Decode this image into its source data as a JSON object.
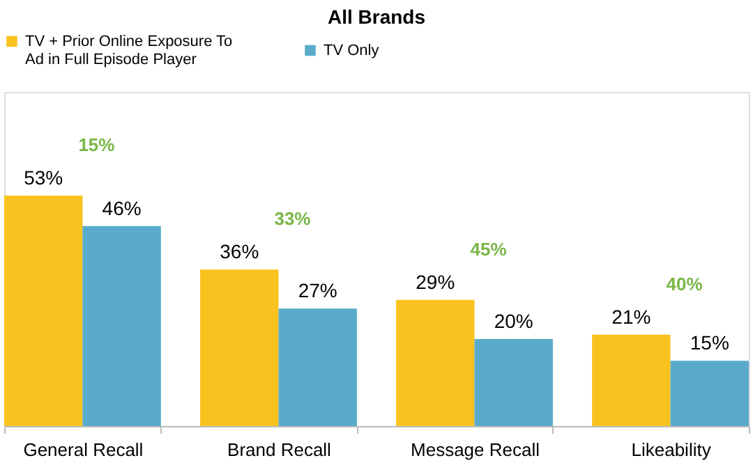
{
  "chart_data": {
    "type": "bar",
    "title": "All Brands",
    "categories": [
      "General Recall",
      "Brand Recall",
      "Message Recall",
      "Likeability"
    ],
    "series": [
      {
        "name": "TV + Prior Online Exposure To Ad in Full Episode Player",
        "color": "#f9c21e",
        "values": [
          53,
          36,
          29,
          21
        ],
        "value_labels": [
          "53%",
          "36%",
          "29%",
          "21%"
        ]
      },
      {
        "name": "TV Only",
        "color": "#5aabcb",
        "values": [
          46,
          27,
          20,
          15
        ],
        "value_labels": [
          "46%",
          "27%",
          "20%",
          "15%"
        ]
      }
    ],
    "annotations": [
      "15%",
      "33%",
      "45%",
      "40%"
    ],
    "legend": "top",
    "grid": false,
    "tick_labels": "x"
  }
}
